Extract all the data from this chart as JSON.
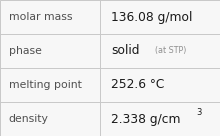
{
  "rows": [
    {
      "label": "molar mass",
      "value": "136.08 g/mol",
      "value_suffix": null,
      "superscript": null
    },
    {
      "label": "phase",
      "value": "solid",
      "value_suffix": "(at STP)",
      "superscript": null
    },
    {
      "label": "melting point",
      "value": "252.6 °C",
      "value_suffix": null,
      "superscript": null
    },
    {
      "label": "density",
      "value": "2.338 g/cm",
      "value_suffix": null,
      "superscript": "3"
    }
  ],
  "col_split": 0.455,
  "background_color": "#f7f7f7",
  "border_color": "#c8c8c8",
  "label_color": "#505050",
  "value_color": "#1a1a1a",
  "suffix_color": "#909090",
  "label_fontsize": 7.8,
  "value_fontsize": 8.8,
  "suffix_fontsize": 5.8,
  "super_fontsize": 6.0,
  "font_family": "DejaVu Sans"
}
